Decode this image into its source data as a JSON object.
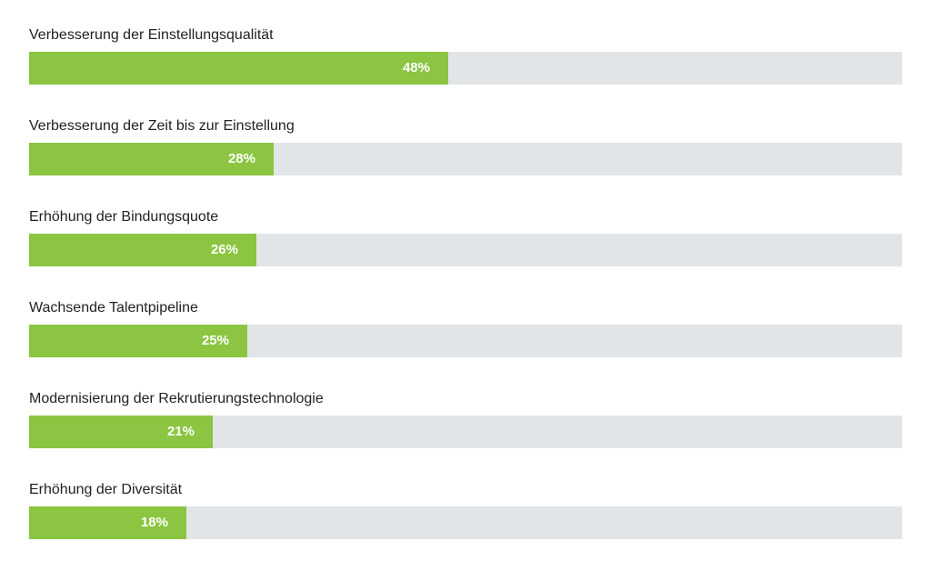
{
  "chart_data": {
    "type": "bar",
    "orientation": "horizontal",
    "categories": [
      "Verbesserung der Einstellungsqualität",
      "Verbesserung der Zeit bis zur Einstellung",
      "Erhöhung der Bindungsquote",
      "Wachsende Talentpipeline",
      "Modernisierung der Rekrutierungstechnologie",
      "Erhöhung der Diversität"
    ],
    "values": [
      48,
      28,
      26,
      25,
      21,
      18
    ],
    "value_labels": [
      "48%",
      "28%",
      "26%",
      "25%",
      "21%",
      "18%"
    ],
    "xlim": [
      0,
      100
    ],
    "grid": false,
    "colors": {
      "bar": "#8bc541",
      "track": "#e2e5e7",
      "label": "#222222",
      "value_label": "#ffffff"
    }
  }
}
